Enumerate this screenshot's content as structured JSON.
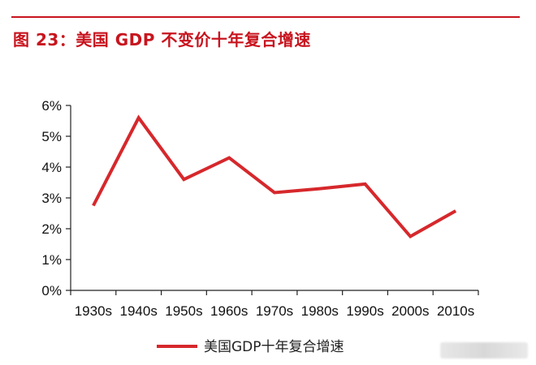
{
  "header": {
    "title": "图 23：美国 GDP 不变价十年复合增速"
  },
  "theme": {
    "accent": "#c8141e",
    "line_color": "#d6282c",
    "axis_color": "#222222"
  },
  "chart_data": {
    "type": "line",
    "title": "图 23：美国 GDP 不变价十年复合增速",
    "categories": [
      "1930s",
      "1940s",
      "1950s",
      "1960s",
      "1970s",
      "1980s",
      "1990s",
      "2000s",
      "2010s"
    ],
    "series": [
      {
        "name": "美国GDP十年复合增速",
        "values": [
          2.75,
          5.6,
          3.6,
          4.3,
          3.17,
          3.3,
          3.45,
          1.75,
          2.58
        ]
      }
    ],
    "y_ticks": [
      "0%",
      "1%",
      "2%",
      "3%",
      "4%",
      "5%",
      "6%"
    ],
    "ylim": [
      0,
      6
    ],
    "xlabel": "",
    "ylabel": "",
    "grid": false,
    "legend_position": "bottom"
  }
}
